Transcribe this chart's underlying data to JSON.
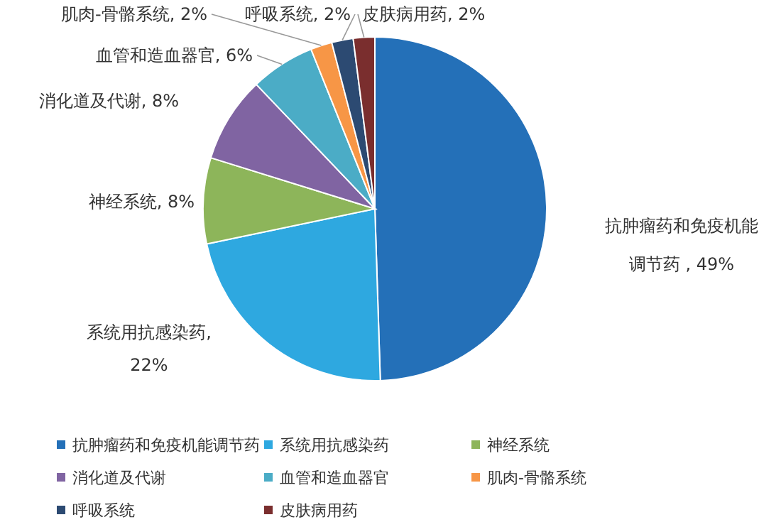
{
  "chart_data": {
    "type": "pie",
    "categories": [
      "抗肿瘤药和免疫机能调节药",
      "系统用抗感染药",
      "神经系统",
      "消化道及代谢",
      "血管和造血器官",
      "肌肉-骨骼系统",
      "呼吸系统",
      "皮肤病用药"
    ],
    "values": [
      49,
      22,
      8,
      8,
      6,
      2,
      2,
      2
    ],
    "value_labels": [
      " , 49%",
      ", 22%",
      ", 8%",
      ", 8%",
      ", 6%",
      ", 2%",
      ", 2%",
      ", 2%"
    ],
    "colors": [
      "#2470b8",
      "#2ea8e0",
      "#8db55a",
      "#8064a2",
      "#4bacc6",
      "#f79646",
      "#2c4a72",
      "#7a2e2e"
    ],
    "legend": "bottom"
  }
}
